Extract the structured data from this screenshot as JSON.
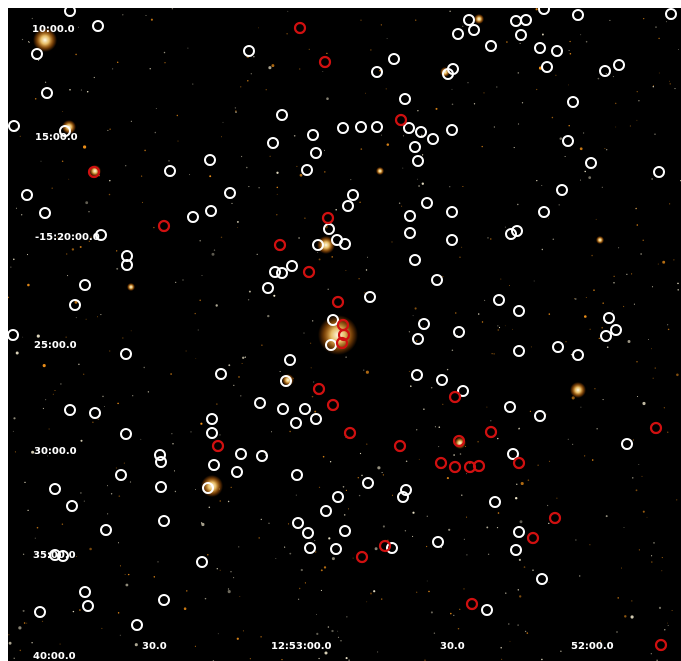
{
  "image": {
    "background": "#000000",
    "border": "#ffffff",
    "colors": {
      "marker_white": "#ffffff",
      "marker_red": "#d01010",
      "star_core": "#fff6d8",
      "star_glow": "#ff9a1a"
    }
  },
  "dec_labels": [
    "10:00.0",
    "15:00.0",
    "-15:20:00.0",
    "25:00.0",
    "30:00.0",
    "35:00.0",
    "40:00.0"
  ],
  "ra_labels": [
    "30.0",
    "12:53:00.0",
    "30.0",
    "52:00.0"
  ]
}
